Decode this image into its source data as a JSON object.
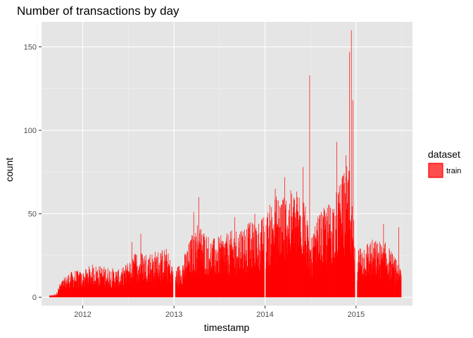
{
  "chart_data": {
    "type": "bar",
    "title": "Number of transactions by day",
    "xlabel": "timestamp",
    "ylabel": "count",
    "x_range": [
      "2011-07-20",
      "2015-08-15"
    ],
    "y_range": [
      -5,
      165
    ],
    "yticks": [
      0,
      50,
      100,
      150
    ],
    "xticks": [
      "2012-01-01",
      "2013-01-01",
      "2014-01-01",
      "2015-01-01"
    ],
    "xtick_labels": [
      "2012",
      "2013",
      "2014",
      "2015"
    ],
    "data_range": [
      "2011-08-20",
      "2015-06-30"
    ],
    "grid": true,
    "panel_background": "#e5e5e5",
    "bar_color": "#ff0000",
    "legend": {
      "title": "dataset",
      "position": "right",
      "entries": [
        {
          "label": "train",
          "color": "#ff4d4d"
        }
      ]
    },
    "envelope": [
      {
        "date": "2011-08-20",
        "value": 1
      },
      {
        "date": "2011-09-15",
        "value": 2
      },
      {
        "date": "2011-10-01",
        "value": 8
      },
      {
        "date": "2011-11-01",
        "value": 13
      },
      {
        "date": "2011-12-01",
        "value": 15
      },
      {
        "date": "2012-01-01",
        "value": 14
      },
      {
        "date": "2012-02-01",
        "value": 18
      },
      {
        "date": "2012-04-01",
        "value": 17
      },
      {
        "date": "2012-06-01",
        "value": 15
      },
      {
        "date": "2012-07-01",
        "value": 20
      },
      {
        "date": "2012-08-01",
        "value": 25
      },
      {
        "date": "2012-10-01",
        "value": 25
      },
      {
        "date": "2012-12-01",
        "value": 27
      },
      {
        "date": "2013-01-01",
        "value": 15
      },
      {
        "date": "2013-02-01",
        "value": 20
      },
      {
        "date": "2013-03-01",
        "value": 30
      },
      {
        "date": "2013-04-01",
        "value": 42
      },
      {
        "date": "2013-06-01",
        "value": 32
      },
      {
        "date": "2013-08-01",
        "value": 35
      },
      {
        "date": "2013-10-01",
        "value": 40
      },
      {
        "date": "2013-12-01",
        "value": 42
      },
      {
        "date": "2014-01-01",
        "value": 45
      },
      {
        "date": "2014-02-01",
        "value": 55
      },
      {
        "date": "2014-04-01",
        "value": 58
      },
      {
        "date": "2014-06-01",
        "value": 60
      },
      {
        "date": "2014-07-01",
        "value": 30
      },
      {
        "date": "2014-08-01",
        "value": 45
      },
      {
        "date": "2014-10-01",
        "value": 55
      },
      {
        "date": "2014-12-01",
        "value": 75
      },
      {
        "date": "2015-01-01",
        "value": 28
      },
      {
        "date": "2015-03-01",
        "value": 32
      },
      {
        "date": "2015-05-01",
        "value": 30
      },
      {
        "date": "2015-06-30",
        "value": 16
      }
    ],
    "peaks": [
      {
        "date": "2012-07-15",
        "value": 33
      },
      {
        "date": "2012-08-20",
        "value": 38
      },
      {
        "date": "2013-03-20",
        "value": 51
      },
      {
        "date": "2013-04-10",
        "value": 60
      },
      {
        "date": "2013-09-01",
        "value": 48
      },
      {
        "date": "2013-11-20",
        "value": 50
      },
      {
        "date": "2014-02-10",
        "value": 65
      },
      {
        "date": "2014-03-20",
        "value": 72
      },
      {
        "date": "2014-06-01",
        "value": 78
      },
      {
        "date": "2014-06-28",
        "value": 133
      },
      {
        "date": "2014-10-15",
        "value": 93
      },
      {
        "date": "2014-11-20",
        "value": 85
      },
      {
        "date": "2014-12-05",
        "value": 147
      },
      {
        "date": "2014-12-12",
        "value": 160
      },
      {
        "date": "2014-12-18",
        "value": 118
      },
      {
        "date": "2015-04-20",
        "value": 44
      },
      {
        "date": "2015-06-20",
        "value": 42
      }
    ],
    "gaps": [
      {
        "start": "2012-12-28",
        "end": "2013-01-05"
      },
      {
        "start": "2013-12-29",
        "end": "2014-01-02"
      },
      {
        "start": "2014-12-27",
        "end": "2015-01-04"
      }
    ]
  }
}
